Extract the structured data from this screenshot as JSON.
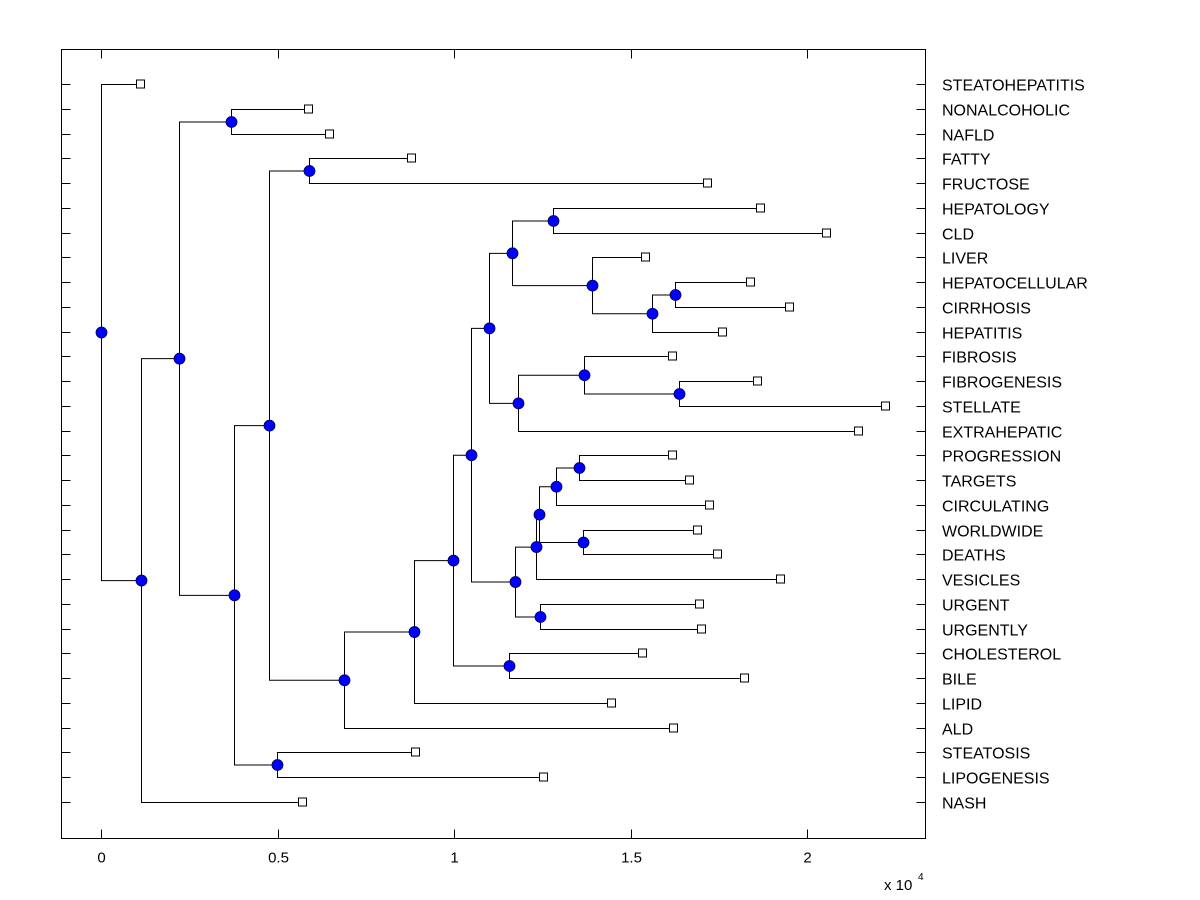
{
  "chart_data": {
    "type": "dendrogram",
    "title": "",
    "xlabel": "",
    "ylabel": "",
    "x_multiplier_label": "x 10",
    "x_multiplier_exponent": "4",
    "xlim": [
      -0.112,
      2.335
    ],
    "xticks": [
      0,
      0.5,
      1,
      1.5,
      2
    ],
    "xtick_labels": [
      "0",
      "0.5",
      "1",
      "1.5",
      "2"
    ],
    "grid": false,
    "leaf_order": [
      "STEATOHEPATITIS",
      "NONALCOHOLIC",
      "NAFLD",
      "FATTY",
      "FRUCTOSE",
      "HEPATOLOGY",
      "CLD",
      "LIVER",
      "HEPATOCELLULAR",
      "CIRRHOSIS",
      "HEPATITIS",
      "FIBROSIS",
      "FIBROGENESIS",
      "STELLATE",
      "EXTRAHEPATIC",
      "PROGRESSION",
      "TARGETS",
      "CIRCULATING",
      "WORLDWIDE",
      "DEATHS",
      "VESICLES",
      "URGENT",
      "URGENTLY",
      "CHOLESTEROL",
      "BILE",
      "LIPID",
      "ALD",
      "STEATOSIS",
      "LIPOGENESIS",
      "NASH"
    ],
    "leaf_x": {
      "STEATOHEPATITIS": 0.113,
      "NONALCOHOLIC": 0.589,
      "NAFLD": 0.649,
      "FATTY": 0.881,
      "FRUCTOSE": 1.72,
      "HEPATOLOGY": 1.87,
      "CLD": 2.057,
      "LIVER": 1.544,
      "HEPATOCELLULAR": 1.841,
      "CIRRHOSIS": 1.952,
      "HEPATITIS": 1.762,
      "FIBROSIS": 1.62,
      "FIBROGENESIS": 1.861,
      "STELLATE": 2.224,
      "EXTRAHEPATIC": 2.147,
      "PROGRESSION": 1.62,
      "TARGETS": 1.669,
      "CIRCULATING": 1.725,
      "WORLDWIDE": 1.691,
      "DEATHS": 1.748,
      "VESICLES": 1.926,
      "URGENT": 1.697,
      "URGENTLY": 1.703,
      "CHOLESTEROL": 1.535,
      "BILE": 1.824,
      "LIPID": 1.448,
      "ALD": 1.623,
      "STEATOSIS": 0.892,
      "LIPOGENESIS": 1.255,
      "NASH": 0.572
    },
    "nodes": [
      {
        "id": "n_nonalc_nafld",
        "x": 0.368,
        "children": [
          "NONALCOHOLIC",
          "NAFLD"
        ]
      },
      {
        "id": "n_fatty_fructose",
        "x": 0.589,
        "children": [
          "FATTY",
          "FRUCTOSE"
        ]
      },
      {
        "id": "n_hepatology_cld",
        "x": 1.28,
        "children": [
          "HEPATOLOGY",
          "CLD"
        ]
      },
      {
        "id": "n_hepatocell_cirr",
        "x": 1.626,
        "children": [
          "HEPATOCELLULAR",
          "CIRRHOSIS"
        ]
      },
      {
        "id": "n_hc_hepatitis",
        "x": 1.561,
        "children": [
          "n_hepatocell_cirr",
          "HEPATITIS"
        ]
      },
      {
        "id": "n_liver_group",
        "x": 1.391,
        "children": [
          "LIVER",
          "n_hc_hepatitis"
        ]
      },
      {
        "id": "n_hepatology_liver",
        "x": 1.164,
        "children": [
          "n_hepatology_cld",
          "n_liver_group"
        ]
      },
      {
        "id": "n_fibrog_stellate",
        "x": 1.637,
        "children": [
          "FIBROGENESIS",
          "STELLATE"
        ]
      },
      {
        "id": "n_fibrosis_group",
        "x": 1.368,
        "children": [
          "FIBROSIS",
          "n_fibrog_stellate"
        ]
      },
      {
        "id": "n_fibrosis_extra",
        "x": 1.181,
        "children": [
          "n_fibrosis_group",
          "EXTRAHEPATIC"
        ]
      },
      {
        "id": "n_hepatic_cluster",
        "x": 1.099,
        "children": [
          "n_hepatology_liver",
          "n_fibrosis_extra"
        ]
      },
      {
        "id": "n_prog_targets",
        "x": 1.354,
        "children": [
          "PROGRESSION",
          "TARGETS"
        ]
      },
      {
        "id": "n_prog_circ",
        "x": 1.289,
        "children": [
          "n_prog_targets",
          "CIRCULATING"
        ]
      },
      {
        "id": "n_world_deaths",
        "x": 1.365,
        "children": [
          "WORLDWIDE",
          "DEATHS"
        ]
      },
      {
        "id": "n_prog_world",
        "x": 1.241,
        "children": [
          "n_prog_circ",
          "n_world_deaths"
        ]
      },
      {
        "id": "n_vesicles",
        "x": 1.232,
        "children": [
          "n_prog_world",
          "VESICLES"
        ]
      },
      {
        "id": "n_urgent",
        "x": 1.244,
        "children": [
          "URGENT",
          "URGENTLY"
        ]
      },
      {
        "id": "n_prog_urgent",
        "x": 1.173,
        "children": [
          "n_vesicles",
          "n_urgent"
        ]
      },
      {
        "id": "n_big_cluster",
        "x": 1.048,
        "children": [
          "n_hepatic_cluster",
          "n_prog_urgent"
        ]
      },
      {
        "id": "n_chol_bile",
        "x": 1.156,
        "children": [
          "CHOLESTEROL",
          "BILE"
        ]
      },
      {
        "id": "n_big_chol",
        "x": 0.997,
        "children": [
          "n_big_cluster",
          "n_chol_bile"
        ]
      },
      {
        "id": "n_lipid",
        "x": 0.887,
        "children": [
          "n_big_chol",
          "LIPID"
        ]
      },
      {
        "id": "n_ald",
        "x": 0.688,
        "children": [
          "n_lipid",
          "ALD"
        ]
      },
      {
        "id": "n_fatty_main",
        "x": 0.476,
        "children": [
          "n_fatty_fructose",
          "n_ald"
        ]
      },
      {
        "id": "n_steatosis_lipo",
        "x": 0.499,
        "children": [
          "STEATOSIS",
          "LIPOGENESIS"
        ]
      },
      {
        "id": "n_fatty_steatosis",
        "x": 0.377,
        "children": [
          "n_fatty_main",
          "n_steatosis_lipo"
        ]
      },
      {
        "id": "n_nafld_main",
        "x": 0.221,
        "children": [
          "n_nonalc_nafld",
          "n_fatty_steatosis"
        ]
      },
      {
        "id": "n_nash",
        "x": 0.113,
        "children": [
          "n_nafld_main",
          "NASH"
        ]
      },
      {
        "id": "n_root",
        "x": 0.0,
        "children": [
          "STEATOHEPATITIS",
          "n_nash"
        ]
      }
    ],
    "colors": {
      "internal_node": "#0000ff",
      "leaf_marker_fill": "#ffffff",
      "edges": "#000000"
    }
  }
}
